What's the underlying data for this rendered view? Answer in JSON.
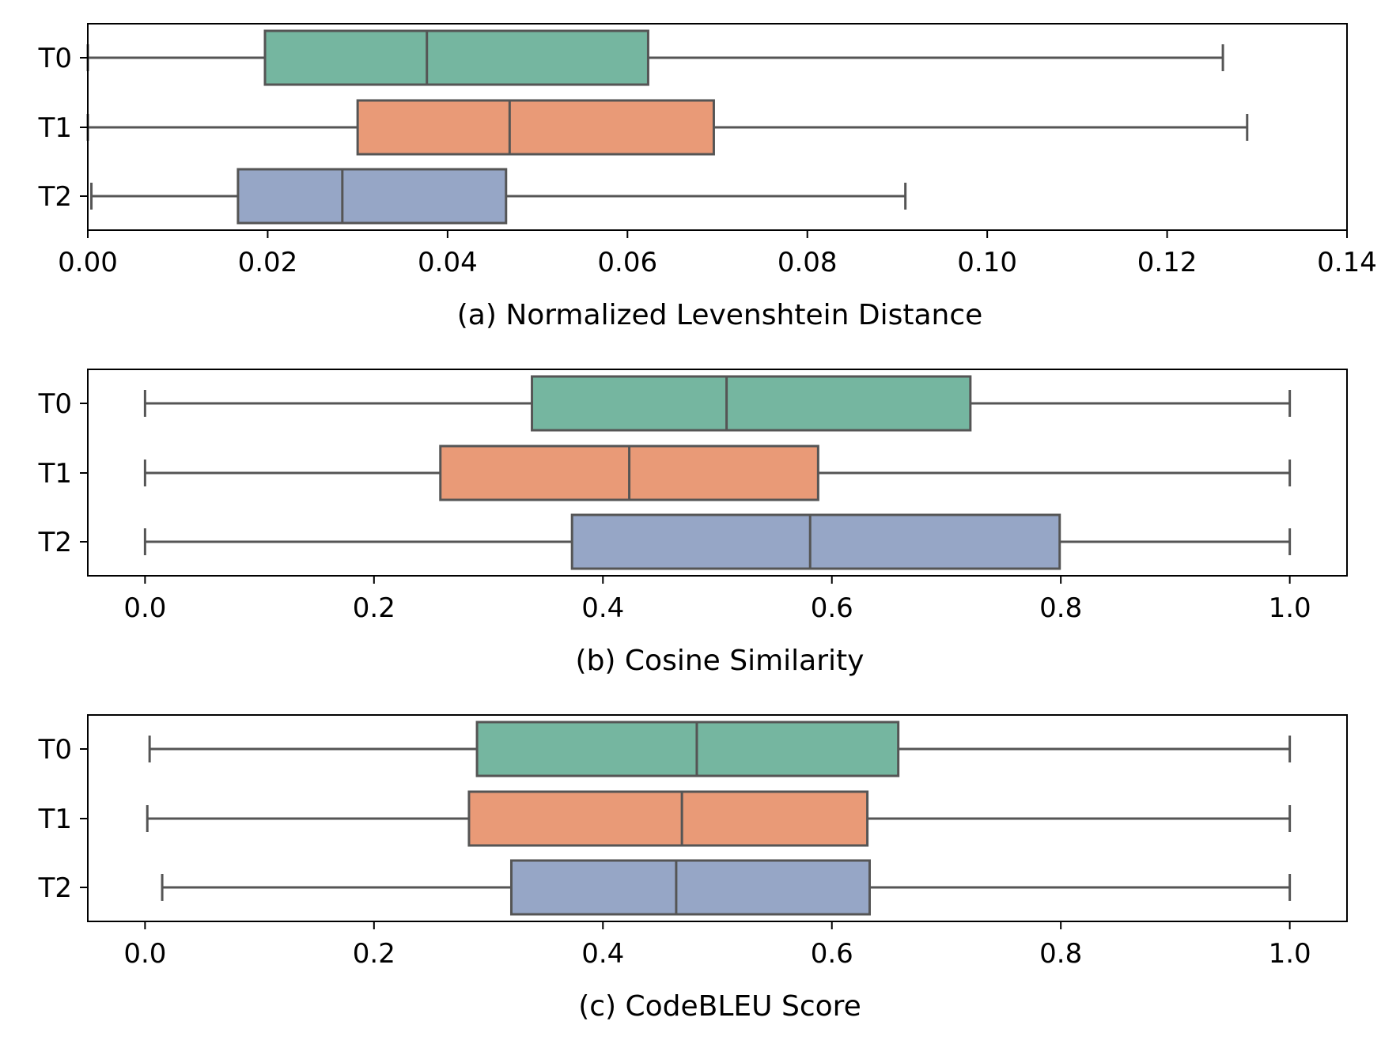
{
  "colors": {
    "T0": "#75b6a0",
    "T1": "#e99a77",
    "T2": "#96a6c6",
    "line": "#555555"
  },
  "chart_data": [
    {
      "type": "boxplot",
      "orientation": "horizontal",
      "xlabel": "(a) Normalized Levenshtein Distance",
      "xlim": [
        0.0,
        0.14
      ],
      "xticks": [
        0.0,
        0.02,
        0.04,
        0.06,
        0.08,
        0.1,
        0.12,
        0.14
      ],
      "xtick_labels": [
        "0.00",
        "0.02",
        "0.04",
        "0.06",
        "0.08",
        "0.10",
        "0.12",
        "0.14"
      ],
      "categories": [
        "T0",
        "T1",
        "T2"
      ],
      "boxes": [
        {
          "label": "T0",
          "whislo": 0.0,
          "q1": 0.0197,
          "med": 0.0377,
          "q3": 0.0623,
          "whishi": 0.1262
        },
        {
          "label": "T1",
          "whislo": 0.0,
          "q1": 0.03,
          "med": 0.0469,
          "q3": 0.0696,
          "whishi": 0.1289
        },
        {
          "label": "T2",
          "whislo": 0.0004,
          "q1": 0.0167,
          "med": 0.0283,
          "q3": 0.0465,
          "whishi": 0.0909
        }
      ]
    },
    {
      "type": "boxplot",
      "orientation": "horizontal",
      "xlabel": "(b) Cosine Similarity",
      "xlim": [
        -0.05,
        1.05
      ],
      "xticks": [
        0.0,
        0.2,
        0.4,
        0.6,
        0.8,
        1.0
      ],
      "xtick_labels": [
        "0.0",
        "0.2",
        "0.4",
        "0.6",
        "0.8",
        "1.0"
      ],
      "categories": [
        "T0",
        "T1",
        "T2"
      ],
      "boxes": [
        {
          "label": "T0",
          "whislo": 0.0,
          "q1": 0.338,
          "med": 0.508,
          "q3": 0.721,
          "whishi": 1.0
        },
        {
          "label": "T1",
          "whislo": 0.0,
          "q1": 0.258,
          "med": 0.423,
          "q3": 0.588,
          "whishi": 1.0
        },
        {
          "label": "T2",
          "whislo": 0.0,
          "q1": 0.373,
          "med": 0.581,
          "q3": 0.799,
          "whishi": 1.0
        }
      ]
    },
    {
      "type": "boxplot",
      "orientation": "horizontal",
      "xlabel": "(c) CodeBLEU Score",
      "xlim": [
        -0.05,
        1.05
      ],
      "xticks": [
        0.0,
        0.2,
        0.4,
        0.6,
        0.8,
        1.0
      ],
      "xtick_labels": [
        "0.0",
        "0.2",
        "0.4",
        "0.6",
        "0.8",
        "1.0"
      ],
      "categories": [
        "T0",
        "T1",
        "T2"
      ],
      "boxes": [
        {
          "label": "T0",
          "whislo": 0.004,
          "q1": 0.29,
          "med": 0.482,
          "q3": 0.658,
          "whishi": 1.0
        },
        {
          "label": "T1",
          "whislo": 0.002,
          "q1": 0.283,
          "med": 0.469,
          "q3": 0.631,
          "whishi": 1.0
        },
        {
          "label": "T2",
          "whislo": 0.015,
          "q1": 0.32,
          "med": 0.464,
          "q3": 0.633,
          "whishi": 1.0
        }
      ]
    }
  ]
}
